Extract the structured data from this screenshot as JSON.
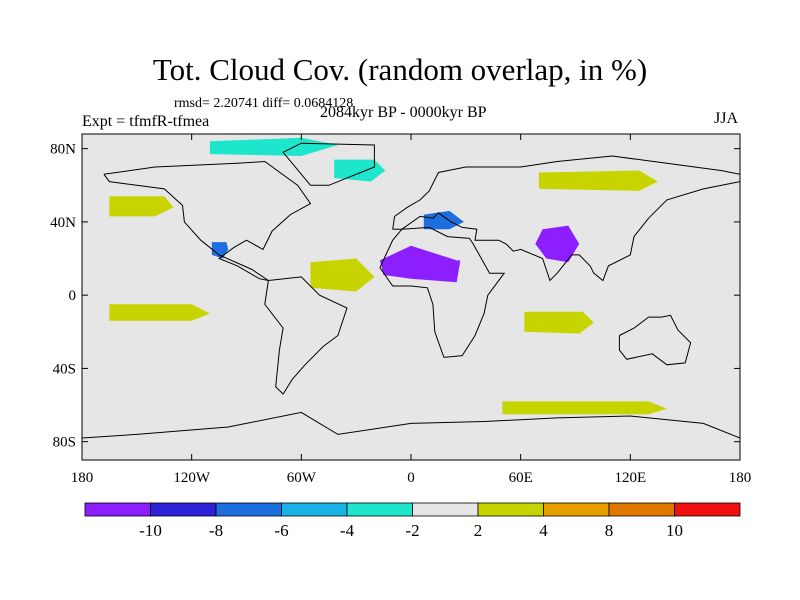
{
  "title": "Tot. Cloud Cov. (random overlap, in %)",
  "stats": "rmsd= 2.20741 diff= 0.0684128",
  "experiment": "Expt = tfmfR-tfmea",
  "period": "2084kyr BP - 0000kyr BP",
  "season": "JJA",
  "map": {
    "x_ticks": [
      "180",
      "120W",
      "60W",
      "0",
      "60E",
      "120E",
      "180"
    ],
    "y_ticks": [
      "80N",
      "40N",
      "0",
      "40S",
      "80S"
    ],
    "background_color": "#e6e6e6"
  },
  "colorbar": {
    "labels": [
      "-10",
      "-8",
      "-6",
      "-4",
      "-2",
      "2",
      "4",
      "8",
      "10"
    ],
    "colors": [
      "#8c1eff",
      "#2c20d8",
      "#1d6fe0",
      "#1ab3e8",
      "#1de6cc",
      "#e6e6e6",
      "#c8d400",
      "#e8a000",
      "#e07800",
      "#f01010"
    ]
  },
  "anomalies": [
    {
      "name": "sahel-negative",
      "level": -10,
      "lon": 5,
      "lat": 13,
      "color": "#8c1eff"
    },
    {
      "name": "india-negative",
      "level": -10,
      "lon": 80,
      "lat": 28,
      "color": "#8c1eff"
    },
    {
      "name": "europe-negative",
      "level": -6,
      "lon": 15,
      "lat": 40,
      "color": "#1d6fe0"
    },
    {
      "name": "north-atlantic-negative",
      "level": -4,
      "lon": -30,
      "lat": 68,
      "color": "#1de6cc"
    },
    {
      "name": "arctic-negative",
      "level": -4,
      "lon": -80,
      "lat": 80,
      "color": "#1de6cc"
    },
    {
      "name": "mexico-negative",
      "level": -6,
      "lon": -105,
      "lat": 25,
      "color": "#1d6fe0"
    },
    {
      "name": "north-pacific-positive",
      "level": 4,
      "lon": -150,
      "lat": 48,
      "color": "#c8d400"
    },
    {
      "name": "tropical-atlantic-positive",
      "level": 4,
      "lon": -40,
      "lat": 10,
      "color": "#c8d400"
    },
    {
      "name": "south-pacific-positive",
      "level": 4,
      "lon": -140,
      "lat": -10,
      "color": "#c8d400"
    },
    {
      "name": "southern-ocean-positive",
      "level": 4,
      "lon": 90,
      "lat": -62,
      "color": "#c8d400"
    },
    {
      "name": "indian-ocean-positive",
      "level": 4,
      "lon": 80,
      "lat": -15,
      "color": "#c8d400"
    },
    {
      "name": "siberia-positive",
      "level": 4,
      "lon": 100,
      "lat": 62,
      "color": "#c8d400"
    }
  ]
}
